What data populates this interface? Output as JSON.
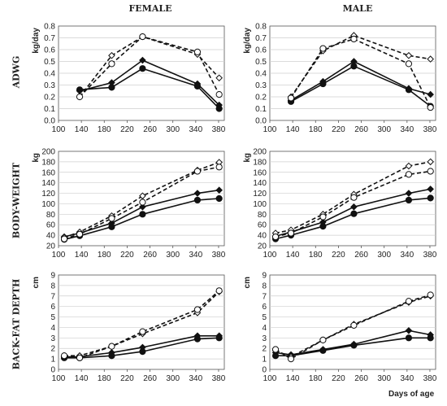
{
  "columns": [
    "FEMALE",
    "MALE"
  ],
  "rows": [
    "ADWG",
    "BODY-WEIGHT",
    "BACK-FAT DEPTH"
  ],
  "x_axis_title": "Days of age",
  "colors": {
    "line": "#111111",
    "grid": "#cfcfcf",
    "axis": "#555555"
  },
  "chart_data": [
    {
      "id": "adwg-female",
      "type": "line",
      "unit": "kg/day",
      "xlim": [
        100,
        390
      ],
      "xticks": [
        100,
        140,
        180,
        220,
        260,
        300,
        340,
        380
      ],
      "ylim": [
        0,
        0.8
      ],
      "yticks": [
        0,
        0.1,
        0.2,
        0.3,
        0.4,
        0.5,
        0.6,
        0.7,
        0.8
      ],
      "series": [
        {
          "style": "solid",
          "marker": "diamond-filled",
          "x": [
            137,
            193,
            247,
            343,
            381
          ],
          "y": [
            0.25,
            0.32,
            0.51,
            0.31,
            0.13
          ]
        },
        {
          "style": "solid",
          "marker": "circle-filled",
          "x": [
            137,
            193,
            247,
            343,
            381
          ],
          "y": [
            0.26,
            0.28,
            0.44,
            0.29,
            0.1
          ]
        },
        {
          "style": "dashed",
          "marker": "diamond-open",
          "x": [
            137,
            193,
            247,
            343,
            381
          ],
          "y": [
            0.2,
            0.55,
            0.71,
            0.56,
            0.36
          ]
        },
        {
          "style": "dashed",
          "marker": "circle-open",
          "x": [
            137,
            193,
            247,
            343,
            381
          ],
          "y": [
            0.2,
            0.48,
            0.71,
            0.58,
            0.22
          ]
        }
      ]
    },
    {
      "id": "adwg-male",
      "type": "line",
      "unit": "kg/day",
      "xlim": [
        100,
        390
      ],
      "xticks": [
        100,
        140,
        180,
        220,
        260,
        300,
        340,
        380
      ],
      "ylim": [
        0,
        0.8
      ],
      "yticks": [
        0,
        0.1,
        0.2,
        0.3,
        0.4,
        0.5,
        0.6,
        0.7,
        0.8
      ],
      "series": [
        {
          "style": "solid",
          "marker": "diamond-filled",
          "x": [
            137,
            193,
            247,
            343,
            381
          ],
          "y": [
            0.17,
            0.33,
            0.5,
            0.27,
            0.22
          ]
        },
        {
          "style": "solid",
          "marker": "circle-filled",
          "x": [
            137,
            193,
            247,
            343,
            381
          ],
          "y": [
            0.16,
            0.31,
            0.46,
            0.26,
            0.12
          ]
        },
        {
          "style": "dashed",
          "marker": "diamond-open",
          "x": [
            137,
            193,
            247,
            343,
            381
          ],
          "y": [
            0.2,
            0.59,
            0.72,
            0.55,
            0.52
          ]
        },
        {
          "style": "dashed",
          "marker": "circle-open",
          "x": [
            137,
            193,
            247,
            343,
            381
          ],
          "y": [
            0.19,
            0.61,
            0.69,
            0.48,
            0.11
          ]
        }
      ]
    },
    {
      "id": "bw-female",
      "type": "line",
      "unit": "kg",
      "xlim": [
        100,
        390
      ],
      "xticks": [
        100,
        140,
        180,
        220,
        260,
        300,
        340,
        380
      ],
      "ylim": [
        20,
        200
      ],
      "yticks": [
        20,
        40,
        60,
        80,
        100,
        120,
        140,
        160,
        180,
        200
      ],
      "series": [
        {
          "style": "solid",
          "marker": "diamond-filled",
          "x": [
            110,
            137,
            193,
            247,
            343,
            381
          ],
          "y": [
            37,
            44,
            63,
            94,
            120,
            126
          ]
        },
        {
          "style": "solid",
          "marker": "circle-filled",
          "x": [
            110,
            137,
            193,
            247,
            343,
            381
          ],
          "y": [
            32,
            39,
            56,
            80,
            107,
            110
          ]
        },
        {
          "style": "dashed",
          "marker": "diamond-open",
          "x": [
            110,
            137,
            193,
            247,
            343,
            381
          ],
          "y": [
            36,
            46,
            77,
            115,
            164,
            179
          ]
        },
        {
          "style": "dashed",
          "marker": "circle-open",
          "x": [
            110,
            137,
            193,
            247,
            343,
            381
          ],
          "y": [
            33,
            42,
            72,
            103,
            162,
            170
          ]
        }
      ]
    },
    {
      "id": "bw-male",
      "type": "line",
      "unit": "kg",
      "xlim": [
        100,
        390
      ],
      "xticks": [
        100,
        140,
        180,
        220,
        260,
        300,
        340,
        380
      ],
      "ylim": [
        20,
        200
      ],
      "yticks": [
        20,
        40,
        60,
        80,
        100,
        120,
        140,
        160,
        180,
        200
      ],
      "series": [
        {
          "style": "solid",
          "marker": "diamond-filled",
          "x": [
            110,
            137,
            193,
            247,
            343,
            381
          ],
          "y": [
            38,
            46,
            65,
            94,
            120,
            128
          ]
        },
        {
          "style": "solid",
          "marker": "circle-filled",
          "x": [
            110,
            137,
            193,
            247,
            343,
            381
          ],
          "y": [
            33,
            40,
            57,
            81,
            107,
            111
          ]
        },
        {
          "style": "dashed",
          "marker": "diamond-open",
          "x": [
            110,
            137,
            193,
            247,
            343,
            381
          ],
          "y": [
            44,
            50,
            80,
            118,
            172,
            180
          ]
        },
        {
          "style": "dashed",
          "marker": "circle-open",
          "x": [
            110,
            137,
            193,
            247,
            343,
            381
          ],
          "y": [
            37,
            44,
            75,
            112,
            156,
            162
          ]
        }
      ]
    },
    {
      "id": "bf-female",
      "type": "line",
      "unit": "cm",
      "xlim": [
        100,
        390
      ],
      "xticks": [
        100,
        140,
        180,
        220,
        260,
        300,
        340,
        380
      ],
      "ylim": [
        0,
        9
      ],
      "yticks": [
        0,
        1,
        2,
        3,
        4,
        5,
        6,
        7,
        8,
        9
      ],
      "series": [
        {
          "style": "solid",
          "marker": "diamond-filled",
          "x": [
            110,
            137,
            193,
            247,
            343,
            381
          ],
          "y": [
            1.2,
            1.2,
            1.6,
            2.1,
            3.2,
            3.2
          ]
        },
        {
          "style": "solid",
          "marker": "circle-filled",
          "x": [
            110,
            137,
            193,
            247,
            343,
            381
          ],
          "y": [
            1.1,
            1.1,
            1.3,
            1.7,
            2.9,
            3.0
          ]
        },
        {
          "style": "dashed",
          "marker": "diamond-open",
          "x": [
            110,
            137,
            193,
            247,
            343,
            381
          ],
          "y": [
            1.3,
            1.3,
            2.2,
            3.4,
            5.4,
            7.4
          ]
        },
        {
          "style": "dashed",
          "marker": "circle-open",
          "x": [
            110,
            137,
            193,
            247,
            343,
            381
          ],
          "y": [
            1.3,
            1.1,
            2.2,
            3.6,
            5.7,
            7.5
          ]
        }
      ]
    },
    {
      "id": "bf-male",
      "type": "line",
      "unit": "cm",
      "xlim": [
        100,
        390
      ],
      "xticks": [
        100,
        140,
        180,
        220,
        260,
        300,
        340,
        380
      ],
      "ylim": [
        0,
        9
      ],
      "yticks": [
        0,
        1,
        2,
        3,
        4,
        5,
        6,
        7,
        8,
        9
      ],
      "series": [
        {
          "style": "solid",
          "marker": "diamond-filled",
          "x": [
            110,
            137,
            193,
            247,
            343,
            381
          ],
          "y": [
            1.6,
            1.4,
            1.9,
            2.4,
            3.7,
            3.3
          ]
        },
        {
          "style": "solid",
          "marker": "circle-filled",
          "x": [
            110,
            137,
            193,
            247,
            343,
            381
          ],
          "y": [
            1.3,
            1.3,
            1.8,
            2.3,
            3.0,
            3.0
          ]
        },
        {
          "style": "dashed",
          "marker": "diamond-open",
          "x": [
            110,
            137,
            193,
            247,
            343,
            381
          ],
          "y": [
            1.8,
            1.2,
            2.8,
            4.3,
            6.4,
            7.0
          ]
        },
        {
          "style": "dashed",
          "marker": "circle-open",
          "x": [
            110,
            137,
            193,
            247,
            343,
            381
          ],
          "y": [
            1.9,
            1.0,
            2.8,
            4.2,
            6.5,
            7.1
          ]
        }
      ]
    }
  ]
}
